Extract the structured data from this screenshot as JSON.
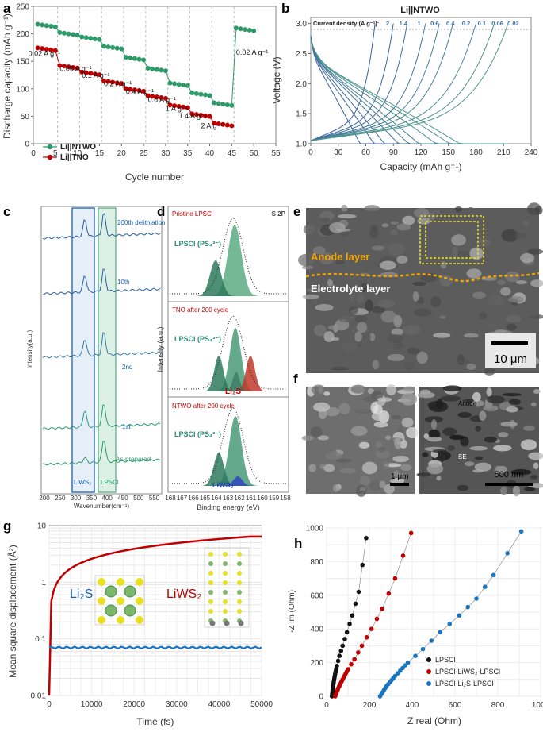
{
  "panels": {
    "a": {
      "letter": "a"
    },
    "b": {
      "letter": "b"
    },
    "c": {
      "letter": "c"
    },
    "d": {
      "letter": "d"
    },
    "e": {
      "letter": "e"
    },
    "f": {
      "letter": "f"
    },
    "g": {
      "letter": "g"
    },
    "h": {
      "letter": "h"
    }
  },
  "colors": {
    "green": "#2e9a6a",
    "red": "#c00000",
    "blue": "#1a75c0",
    "dark_blue": "#3a5ea0",
    "teal": "#4e9a8e",
    "yellow": "#e8e020",
    "orange": "#f0a500"
  },
  "chart_data": [
    {
      "id": "a",
      "type": "scatter",
      "xlabel": "Cycle number",
      "ylabel": "Discharge capacity (mAh g⁻¹)",
      "xlim": [
        0,
        55
      ],
      "ylim": [
        0,
        250
      ],
      "xticks": [
        "0",
        "5",
        "10",
        "15",
        "20",
        "25",
        "30",
        "35",
        "40",
        "45",
        "50",
        "55"
      ],
      "yticks": [
        "0",
        "50",
        "100",
        "150",
        "200",
        "250"
      ],
      "legend": [
        "Li||NTWO",
        "Li||TNO"
      ],
      "rate_labels": [
        "0.02 A g⁻¹",
        "0.06 A g⁻¹",
        "0.1 A g⁻¹",
        "0.2 A g⁻¹",
        "0.4 A g⁻¹",
        "0.6 A g⁻¹",
        "1 A g⁻¹",
        "1.4 A g⁻¹",
        "2 A g⁻¹",
        "0.02 A g⁻¹"
      ],
      "series": [
        {
          "name": "Li||NTWO",
          "color": "#2e9a6a",
          "steps": [
            [
              1,
              5,
              215
            ],
            [
              6,
              10,
              200
            ],
            [
              11,
              15,
              192
            ],
            [
              16,
              20,
              175
            ],
            [
              21,
              25,
              155
            ],
            [
              26,
              30,
              135
            ],
            [
              31,
              35,
              108
            ],
            [
              36,
              40,
              90
            ],
            [
              41,
              45,
              72
            ],
            [
              46,
              50,
              208
            ]
          ]
        },
        {
          "name": "Li||TNO",
          "color": "#c00000",
          "steps": [
            [
              1,
              5,
              172
            ],
            [
              6,
              10,
              140
            ],
            [
              11,
              15,
              128
            ],
            [
              16,
              20,
              112
            ],
            [
              21,
              25,
              98
            ],
            [
              26,
              30,
              85
            ],
            [
              31,
              35,
              68
            ],
            [
              36,
              40,
              52
            ],
            [
              41,
              45,
              35
            ]
          ]
        }
      ]
    },
    {
      "id": "b",
      "type": "line",
      "title": "Li||NTWO",
      "legend_title": "Current density (A g⁻¹):",
      "current_densities": [
        "2",
        "1.4",
        "1",
        "0.6",
        "0.4",
        "0.2",
        "0.1",
        "0.06",
        "0.02"
      ],
      "xlabel": "Capacity (mAh g⁻¹)",
      "ylabel": "Voltage (V)",
      "xlim": [
        0,
        240
      ],
      "ylim": [
        1.0,
        3.1
      ],
      "xticks": [
        "0",
        "30",
        "60",
        "90",
        "120",
        "150",
        "180",
        "210",
        "240"
      ],
      "yticks": [
        "1.0",
        "1.5",
        "2.0",
        "2.5",
        "3.0"
      ],
      "end_capacities": [
        70,
        90,
        105,
        125,
        140,
        155,
        180,
        200,
        215
      ]
    },
    {
      "id": "c",
      "type": "line",
      "xlabel": "Wavenumber(cm⁻¹)",
      "ylabel": "Intensity(a.u.)",
      "xticks": [
        "200",
        "250",
        "300",
        "350",
        "400",
        "450",
        "500",
        "550"
      ],
      "curve_labels": [
        "200th delithiation",
        "10th",
        "2nd",
        "1st",
        "As-prepared"
      ],
      "band_labels": [
        "LiWS₂",
        "LPSCl"
      ]
    },
    {
      "id": "d",
      "type": "line",
      "title": "S 2P",
      "xlabel": "Binding energy (eV)",
      "ylabel": "Intensity (a.u.)",
      "xticks": [
        "168",
        "167",
        "166",
        "165",
        "164",
        "163",
        "162",
        "161",
        "160",
        "159",
        "158"
      ],
      "sub_titles": [
        "Pristine LPSCl",
        "TNO after 200 cycle",
        "NTWO after 200 cycle"
      ],
      "peak_labels": [
        "LPSCl (PS₄³⁻)",
        "Li₂S",
        "LiWS₂"
      ]
    },
    {
      "id": "g",
      "type": "line",
      "xlabel": "Time (fs)",
      "ylabel": "Mean square displacement (Å²)",
      "xlim": [
        0,
        50000
      ],
      "ylim": [
        0.01,
        10
      ],
      "xticks": [
        "0",
        "10000",
        "20000",
        "30000",
        "40000",
        "50000"
      ],
      "yticks": [
        "0.01",
        "0.1",
        "1",
        "10"
      ],
      "series": [
        {
          "name": "LiWS₂",
          "color": "#c00000",
          "x": [
            0,
            500,
            2000,
            5000,
            10000,
            20000,
            30000,
            40000,
            50000
          ],
          "y": [
            0.05,
            0.5,
            0.9,
            1.5,
            2.3,
            3.8,
            4.8,
            5.6,
            6.4
          ]
        },
        {
          "name": "Li₂S",
          "color": "#1a75c0",
          "x": [
            0,
            50000
          ],
          "y": [
            0.07,
            0.07
          ]
        }
      ]
    },
    {
      "id": "h",
      "type": "scatter",
      "xlabel": "Z real (Ohm)",
      "ylabel": "-Z im (Ohm)",
      "xlim": [
        0,
        1000
      ],
      "ylim": [
        0,
        1000
      ],
      "xticks": [
        "0",
        "200",
        "400",
        "600",
        "800",
        "1000"
      ],
      "yticks": [
        "0",
        "200",
        "400",
        "600",
        "800",
        "1000"
      ],
      "legend": [
        "LPSCl",
        "LPSCl-LiWS₂-LPSCl",
        "LPSCl-Li₂S-LPSCl"
      ],
      "series": [
        {
          "name": "LPSCl",
          "color": "#111111",
          "x": [
            25,
            30,
            38,
            48,
            60,
            75,
            95,
            120,
            150,
            185
          ],
          "y": [
            0,
            60,
            120,
            180,
            240,
            300,
            380,
            480,
            620,
            940
          ]
        },
        {
          "name": "LPSCl-LiWS₂-LPSCl",
          "color": "#c00000",
          "x": [
            40,
            55,
            75,
            100,
            130,
            165,
            210,
            260,
            320,
            395
          ],
          "y": [
            0,
            50,
            100,
            160,
            220,
            300,
            400,
            520,
            700,
            970
          ]
        },
        {
          "name": "LPSCl-Li₂S-LPSCl",
          "color": "#1a75c0",
          "x": [
            250,
            280,
            320,
            380,
            450,
            530,
            620,
            700,
            780,
            910
          ],
          "y": [
            0,
            60,
            120,
            200,
            280,
            380,
            480,
            580,
            720,
            980
          ]
        }
      ]
    }
  ],
  "panel_e": {
    "anode_label": "Anode layer",
    "electrolyte_label": "Electrolyte layer",
    "scalebar": "10 μm"
  },
  "panel_f": {
    "scalebar_left": "1 μm",
    "scalebar_right": "500 nm",
    "anode": "Anode",
    "se": "SE"
  }
}
